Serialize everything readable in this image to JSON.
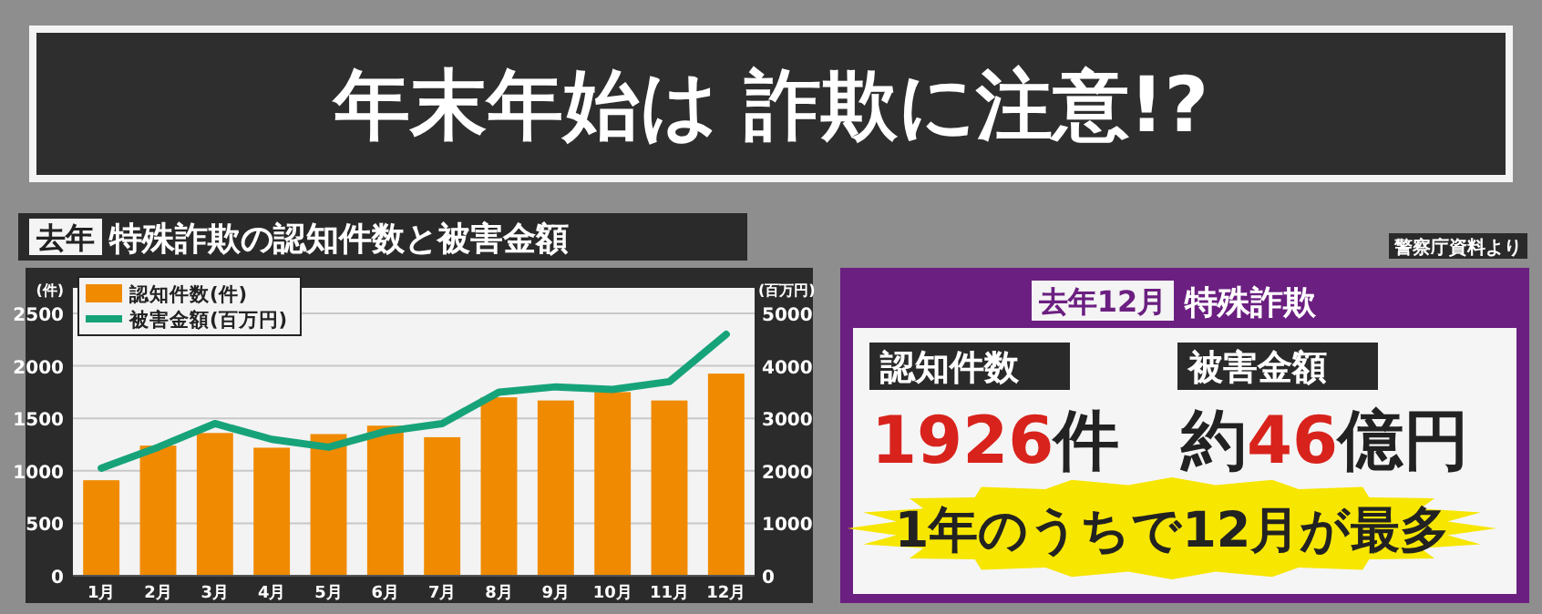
{
  "chart_data": [
    {
      "type": "bar",
      "title": "年末年始は 詐欺に注意!?",
      "subtitle": "去年 特殊詐欺の認知件数と被害金額",
      "ylabel": "(件)",
      "y2label": "(百万円)",
      "categories": [
        "1月",
        "2月",
        "3月",
        "4月",
        "5月",
        "6月",
        "7月",
        "8月",
        "9月",
        "10月",
        "11月",
        "12月"
      ],
      "series": [
        {
          "name": "認知件数(件)",
          "type": "bar",
          "color": "#f08a00",
          "values": [
            910,
            1240,
            1360,
            1220,
            1350,
            1430,
            1320,
            1700,
            1670,
            1750,
            1670,
            1926
          ]
        },
        {
          "name": "被害金額(百万円)",
          "type": "line",
          "axis": "y2",
          "color": "#17a37a",
          "values": [
            2050,
            2450,
            2900,
            2600,
            2450,
            2750,
            2900,
            3500,
            3600,
            3550,
            3700,
            4600
          ]
        }
      ],
      "ylim": [
        0,
        2500
      ],
      "yticks": [
        0,
        500,
        1000,
        1500,
        2000,
        2500
      ],
      "y2lim": [
        0,
        5000
      ],
      "y2ticks": [
        0,
        1000,
        2000,
        3000,
        4000,
        5000
      ],
      "grid": "y",
      "legend": "top left",
      "annotations": [
        "警察庁資料より"
      ]
    },
    {
      "type": "other",
      "title": "去年12月 特殊詐欺",
      "annotations": [
        "認知件数",
        "1926件",
        "被害金額",
        "約46億円",
        "1年のうちで12月が最多"
      ]
    }
  ]
}
